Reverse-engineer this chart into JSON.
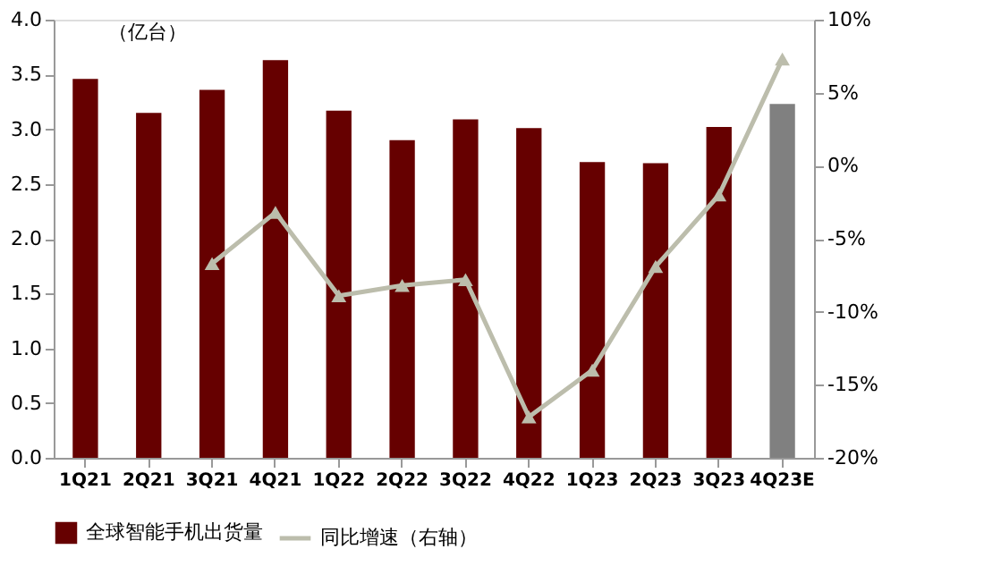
{
  "chart_data": {
    "type": "bar",
    "ylabel": "（亿台）",
    "categories": [
      "1Q21",
      "2Q21",
      "3Q21",
      "4Q21",
      "1Q22",
      "2Q22",
      "3Q22",
      "4Q22",
      "1Q23",
      "2Q23",
      "3Q23",
      "4Q23E"
    ],
    "series": [
      {
        "name": "全球智能手机出货量",
        "colors": [
          "#660000",
          "#660000",
          "#660000",
          "#660000",
          "#660000",
          "#660000",
          "#660000",
          "#660000",
          "#660000",
          "#660000",
          "#660000",
          "#808080"
        ],
        "values": [
          3.46,
          3.15,
          3.36,
          3.63,
          3.17,
          2.9,
          3.09,
          3.01,
          2.7,
          2.69,
          3.02,
          3.23
        ]
      },
      {
        "name": "同比增速（右轴）",
        "type": "line",
        "axis": "y2",
        "color": "#bcbdac",
        "values": [
          null,
          null,
          -6.7,
          -3.2,
          -8.9,
          -8.2,
          -7.8,
          -17.2,
          -14.0,
          -6.9,
          -2.0,
          7.3
        ]
      }
    ],
    "ylim": [
      0,
      4
    ],
    "yticks": [
      {
        "value": 0,
        "label": "0.0"
      },
      {
        "value": 0.5,
        "label": "0.5"
      },
      {
        "value": 1,
        "label": "1.0"
      },
      {
        "value": 1.5,
        "label": "1.5"
      },
      {
        "value": 2,
        "label": "2.0"
      },
      {
        "value": 2.5,
        "label": "2.5"
      },
      {
        "value": 3,
        "label": "3.0"
      },
      {
        "value": 3.5,
        "label": "3.5"
      },
      {
        "value": 4,
        "label": "4.0"
      }
    ],
    "y2lim": [
      -20,
      10
    ],
    "y2ticks": [
      {
        "value": -20,
        "label": "-20%"
      },
      {
        "value": -15,
        "label": "-15%"
      },
      {
        "value": -10,
        "label": "-10%"
      },
      {
        "value": -5,
        "label": "-5%"
      },
      {
        "value": 0,
        "label": "0%"
      },
      {
        "value": 5,
        "label": "5%"
      },
      {
        "value": 10,
        "label": "10%"
      }
    ],
    "marker": "triangle",
    "legend": "bottom",
    "grid": false
  }
}
